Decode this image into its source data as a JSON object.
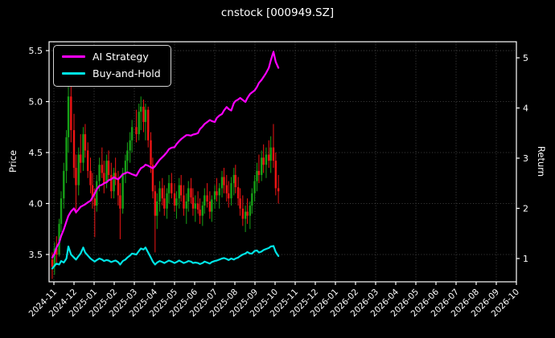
{
  "chart_data": {
    "type": "candlestick+line",
    "title": "cnstock [000949.SZ]",
    "x_axis": {
      "tick_labels": [
        "2024-11",
        "2024-12",
        "2025-01",
        "2025-02",
        "2025-03",
        "2025-04",
        "2025-05",
        "2025-06",
        "2025-07",
        "2025-08",
        "2025-09",
        "2025-10",
        "2025-11",
        "2025-12",
        "2026-01",
        "2026-02",
        "2026-03",
        "2026-04",
        "2026-05",
        "2026-06",
        "2026-07",
        "2026-08",
        "2026-09",
        "2026-10"
      ],
      "tick_rotation_deg": 45
    },
    "left_axis": {
      "label": "Price",
      "ticks": [
        3.5,
        4.0,
        4.5,
        5.0,
        5.5
      ],
      "range": [
        3.232,
        5.587
      ]
    },
    "right_axis": {
      "label": "Return",
      "ticks": [
        1,
        2,
        3,
        4,
        5
      ],
      "range": [
        0.536,
        5.32
      ]
    },
    "legend": {
      "position": "upper-left",
      "entries": [
        {
          "label": "AI Strategy",
          "color": "#ff00ff"
        },
        {
          "label": "Buy-and-Hold",
          "color": "#00e5e6"
        }
      ]
    },
    "grid": {
      "visible": true,
      "style": "dotted",
      "color": "#565656"
    },
    "colors": {
      "background": "#000000",
      "text": "#ffffff",
      "candle_up": "#16a016",
      "candle_down": "#ee1414",
      "spine": "#ffffff"
    },
    "candles": {
      "dates": [
        "2024-10-29",
        "2024-11-02",
        "2024-11-05",
        "2024-11-09",
        "2024-11-12",
        "2024-11-16",
        "2024-11-20",
        "2024-11-23",
        "2024-11-27",
        "2024-12-01",
        "2024-12-04",
        "2024-12-08",
        "2024-12-11",
        "2024-12-15",
        "2024-12-18",
        "2024-12-22",
        "2024-12-26",
        "2024-12-29",
        "2025-01-02",
        "2025-01-05",
        "2025-01-09",
        "2025-01-13",
        "2025-01-16",
        "2025-01-20",
        "2025-01-23",
        "2025-01-27",
        "2025-01-31",
        "2025-02-03",
        "2025-02-07",
        "2025-02-10",
        "2025-02-14",
        "2025-02-18",
        "2025-02-21",
        "2025-02-25",
        "2025-02-28",
        "2025-03-04",
        "2025-03-08",
        "2025-03-11",
        "2025-03-15",
        "2025-03-18",
        "2025-03-22",
        "2025-03-26",
        "2025-03-29",
        "2025-04-02",
        "2025-04-05",
        "2025-04-09",
        "2025-04-13",
        "2025-04-16",
        "2025-04-20",
        "2025-04-23",
        "2025-04-27",
        "2025-05-01",
        "2025-05-04",
        "2025-05-08",
        "2025-05-11",
        "2025-05-15",
        "2025-05-19",
        "2025-05-22",
        "2025-05-26",
        "2025-05-29",
        "2025-06-02",
        "2025-06-06",
        "2025-06-09",
        "2025-06-13",
        "2025-06-16",
        "2025-06-20",
        "2025-06-24",
        "2025-06-27",
        "2025-07-01",
        "2025-07-04",
        "2025-07-08",
        "2025-07-12",
        "2025-07-15",
        "2025-07-19",
        "2025-07-22",
        "2025-07-26",
        "2025-07-30",
        "2025-08-02",
        "2025-08-06",
        "2025-08-09",
        "2025-08-13",
        "2025-08-17",
        "2025-08-20",
        "2025-08-24",
        "2025-08-27",
        "2025-08-31",
        "2025-09-04",
        "2025-09-07",
        "2025-09-11",
        "2025-09-14",
        "2025-09-18",
        "2025-09-22",
        "2025-09-25",
        "2025-09-29",
        "2025-10-02",
        "2025-10-06"
      ],
      "ohlc": [
        [
          3.45,
          3.52,
          3.26,
          3.38
        ],
        [
          3.38,
          3.62,
          3.3,
          3.56
        ],
        [
          3.56,
          3.68,
          3.42,
          3.5
        ],
        [
          3.5,
          3.85,
          3.48,
          3.8
        ],
        [
          3.8,
          4.12,
          3.72,
          4.05
        ],
        [
          4.05,
          4.4,
          3.95,
          4.32
        ],
        [
          4.32,
          4.72,
          4.2,
          4.65
        ],
        [
          4.65,
          5.2,
          4.5,
          5.05
        ],
        [
          5.05,
          5.18,
          4.6,
          4.72
        ],
        [
          4.72,
          4.88,
          4.25,
          4.35
        ],
        [
          4.35,
          4.48,
          3.9,
          4.18
        ],
        [
          4.18,
          4.55,
          4.08,
          4.48
        ],
        [
          4.48,
          4.68,
          4.3,
          4.4
        ],
        [
          4.4,
          4.75,
          4.32,
          4.68
        ],
        [
          4.68,
          4.78,
          4.45,
          4.52
        ],
        [
          4.52,
          4.6,
          4.25,
          4.32
        ],
        [
          4.32,
          4.45,
          4.1,
          4.18
        ],
        [
          4.18,
          4.3,
          3.95,
          4.05
        ],
        [
          4.05,
          4.15,
          3.67,
          3.98
        ],
        [
          3.98,
          4.28,
          3.92,
          4.22
        ],
        [
          4.22,
          4.45,
          4.12,
          4.38
        ],
        [
          4.38,
          4.55,
          4.25,
          4.3
        ],
        [
          4.3,
          4.42,
          4.1,
          4.2
        ],
        [
          4.2,
          4.48,
          4.15,
          4.42
        ],
        [
          4.42,
          4.52,
          4.22,
          4.28
        ],
        [
          4.28,
          4.4,
          4.05,
          4.12
        ],
        [
          4.12,
          4.35,
          4.05,
          4.3
        ],
        [
          4.3,
          4.45,
          4.18,
          4.25
        ],
        [
          4.25,
          4.32,
          3.98,
          4.08
        ],
        [
          4.08,
          4.2,
          3.65,
          3.95
        ],
        [
          3.95,
          4.35,
          3.9,
          4.3
        ],
        [
          4.3,
          4.48,
          4.2,
          4.42
        ],
        [
          4.42,
          4.6,
          4.32,
          4.52
        ],
        [
          4.52,
          4.7,
          4.4,
          4.62
        ],
        [
          4.62,
          4.82,
          4.5,
          4.75
        ],
        [
          4.75,
          4.92,
          4.6,
          4.68
        ],
        [
          4.68,
          4.98,
          4.62,
          4.9
        ],
        [
          4.9,
          5.05,
          4.72,
          4.95
        ],
        [
          4.95,
          5.02,
          4.7,
          4.8
        ],
        [
          4.8,
          4.98,
          4.62,
          4.92
        ],
        [
          4.92,
          4.95,
          4.55,
          4.62
        ],
        [
          4.62,
          4.7,
          4.3,
          4.38
        ],
        [
          4.38,
          4.45,
          4.05,
          4.12
        ],
        [
          4.12,
          4.18,
          3.52,
          3.88
        ],
        [
          3.88,
          4.1,
          3.75,
          4.02
        ],
        [
          4.02,
          4.22,
          3.92,
          4.15
        ],
        [
          4.15,
          4.25,
          3.98,
          4.05
        ],
        [
          4.05,
          4.18,
          3.88,
          3.95
        ],
        [
          3.95,
          4.15,
          3.85,
          4.1
        ],
        [
          4.1,
          4.28,
          4.0,
          4.2
        ],
        [
          4.2,
          4.3,
          4.05,
          4.1
        ],
        [
          4.1,
          4.2,
          3.92,
          3.98
        ],
        [
          3.98,
          4.12,
          3.85,
          4.05
        ],
        [
          4.05,
          4.25,
          3.95,
          4.18
        ],
        [
          4.18,
          4.28,
          4.02,
          4.08
        ],
        [
          4.08,
          4.18,
          3.88,
          3.95
        ],
        [
          3.95,
          4.1,
          3.8,
          4.02
        ],
        [
          4.02,
          4.22,
          3.92,
          4.15
        ],
        [
          4.15,
          4.25,
          4.0,
          4.06
        ],
        [
          4.06,
          4.15,
          3.88,
          3.95
        ],
        [
          3.95,
          4.08,
          3.82,
          4.0
        ],
        [
          4.0,
          4.12,
          3.9,
          3.94
        ],
        [
          3.94,
          4.05,
          3.8,
          3.88
        ],
        [
          3.88,
          4.02,
          3.78,
          3.98
        ],
        [
          3.98,
          4.15,
          3.9,
          4.08
        ],
        [
          4.08,
          4.2,
          3.96,
          4.02
        ],
        [
          4.02,
          4.12,
          3.85,
          3.92
        ],
        [
          3.92,
          4.08,
          3.82,
          4.04
        ],
        [
          4.04,
          4.18,
          3.95,
          4.12
        ],
        [
          4.12,
          4.25,
          4.02,
          4.08
        ],
        [
          4.08,
          4.2,
          3.95,
          4.15
        ],
        [
          4.15,
          4.32,
          4.06,
          4.26
        ],
        [
          4.26,
          4.35,
          4.1,
          4.18
        ],
        [
          4.18,
          4.28,
          4.02,
          4.1
        ],
        [
          4.1,
          4.22,
          3.96,
          4.05
        ],
        [
          4.05,
          4.26,
          3.98,
          4.2
        ],
        [
          4.2,
          4.35,
          4.08,
          4.28
        ],
        [
          4.28,
          4.38,
          4.1,
          4.16
        ],
        [
          4.16,
          4.26,
          3.98,
          4.05
        ],
        [
          4.05,
          4.15,
          3.88,
          3.95
        ],
        [
          3.95,
          4.08,
          3.78,
          3.85
        ],
        [
          3.85,
          3.98,
          3.72,
          3.92
        ],
        [
          3.92,
          4.05,
          3.8,
          3.88
        ],
        [
          3.88,
          4.02,
          3.75,
          3.98
        ],
        [
          3.98,
          4.15,
          3.9,
          4.1
        ],
        [
          4.1,
          4.28,
          4.02,
          4.22
        ],
        [
          4.22,
          4.4,
          4.12,
          4.32
        ],
        [
          4.32,
          4.48,
          4.2,
          4.28
        ],
        [
          4.28,
          4.52,
          4.22,
          4.45
        ],
        [
          4.45,
          4.58,
          4.3,
          4.38
        ],
        [
          4.38,
          4.55,
          4.25,
          4.48
        ],
        [
          4.48,
          4.62,
          4.35,
          4.42
        ],
        [
          4.42,
          4.66,
          4.3,
          4.55
        ],
        [
          4.55,
          4.78,
          4.35,
          4.42
        ],
        [
          4.42,
          4.5,
          4.08,
          4.15
        ],
        [
          4.15,
          4.28,
          4.0,
          4.12
        ]
      ]
    },
    "series": [
      {
        "name": "AI Strategy",
        "axis": "right",
        "color": "#ff00ff",
        "values": [
          1.02,
          1.1,
          1.22,
          1.32,
          1.45,
          1.58,
          1.74,
          1.85,
          1.94,
          2.0,
          1.92,
          1.98,
          2.03,
          2.06,
          2.08,
          2.12,
          2.15,
          2.22,
          2.3,
          2.38,
          2.45,
          2.47,
          2.5,
          2.52,
          2.56,
          2.58,
          2.62,
          2.6,
          2.58,
          2.62,
          2.68,
          2.7,
          2.72,
          2.7,
          2.68,
          2.65,
          2.74,
          2.8,
          2.83,
          2.87,
          2.85,
          2.82,
          2.8,
          2.84,
          2.9,
          2.97,
          3.02,
          3.06,
          3.12,
          3.18,
          3.21,
          3.22,
          3.28,
          3.34,
          3.38,
          3.42,
          3.46,
          3.46,
          3.45,
          3.47,
          3.48,
          3.5,
          3.58,
          3.63,
          3.68,
          3.72,
          3.76,
          3.74,
          3.72,
          3.8,
          3.85,
          3.88,
          3.95,
          4.02,
          3.98,
          3.95,
          4.1,
          4.14,
          4.17,
          4.2,
          4.16,
          4.12,
          4.2,
          4.28,
          4.31,
          4.35,
          4.42,
          4.5,
          4.56,
          4.62,
          4.7,
          4.8,
          4.95,
          5.12,
          4.92,
          4.8
        ]
      },
      {
        "name": "Buy-and-Hold",
        "axis": "right",
        "color": "#00e5e6",
        "values": [
          0.8,
          0.86,
          0.9,
          0.88,
          0.95,
          0.92,
          1.0,
          1.24,
          1.08,
          1.02,
          0.98,
          1.05,
          1.1,
          1.22,
          1.12,
          1.06,
          1.0,
          0.97,
          0.94,
          0.97,
          1.0,
          0.98,
          0.95,
          0.97,
          0.96,
          0.93,
          0.95,
          0.96,
          0.93,
          0.88,
          0.95,
          0.98,
          1.02,
          1.06,
          1.1,
          1.08,
          1.15,
          1.2,
          1.18,
          1.22,
          1.12,
          1.02,
          0.94,
          0.88,
          0.92,
          0.95,
          0.93,
          0.91,
          0.94,
          0.96,
          0.94,
          0.91,
          0.93,
          0.96,
          0.94,
          0.91,
          0.93,
          0.95,
          0.94,
          0.91,
          0.92,
          0.91,
          0.89,
          0.91,
          0.94,
          0.92,
          0.9,
          0.93,
          0.95,
          0.96,
          0.98,
          1.0,
          1.01,
          0.99,
          0.97,
          1.0,
          0.98,
          1.0,
          1.02,
          1.05,
          1.08,
          1.1,
          1.13,
          1.1,
          1.1,
          1.15,
          1.16,
          1.12,
          1.14,
          1.17,
          1.19,
          1.21,
          1.24,
          1.25,
          1.13,
          1.05
        ]
      }
    ]
  }
}
